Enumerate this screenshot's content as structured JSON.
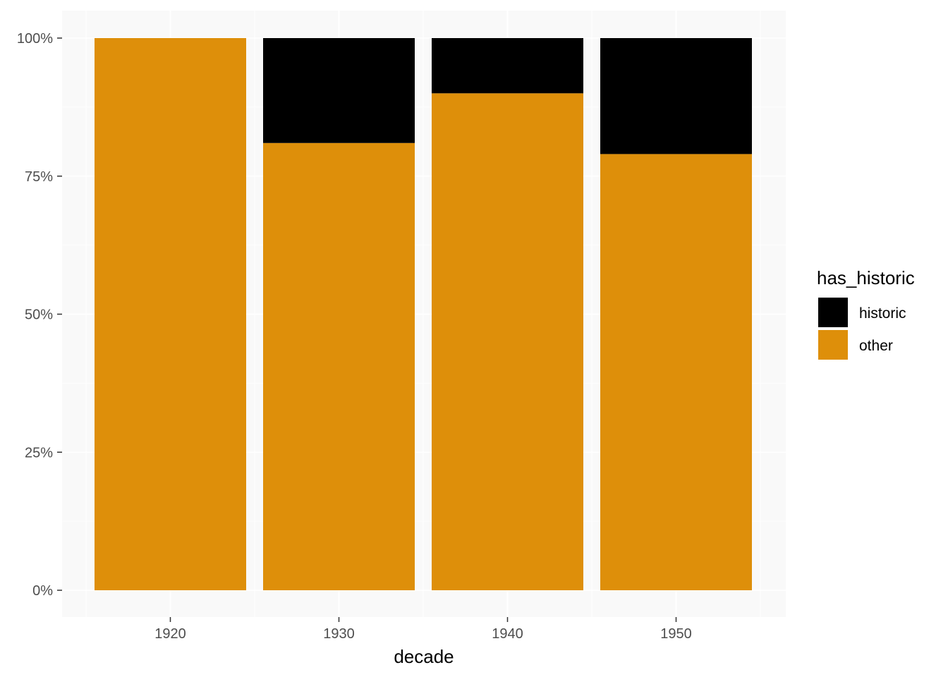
{
  "chart_data": {
    "type": "bar",
    "stacked": true,
    "position": "fill",
    "categories": [
      "1920",
      "1930",
      "1940",
      "1950"
    ],
    "series": [
      {
        "name": "other",
        "values": [
          1.0,
          0.81,
          0.9,
          0.79
        ]
      },
      {
        "name": "historic",
        "values": [
          0.0,
          0.19,
          0.1,
          0.21
        ]
      }
    ],
    "xlabel": "decade",
    "ylabel": "",
    "ylim": [
      0,
      1
    ],
    "y_ticks": [
      0,
      0.25,
      0.5,
      0.75,
      1.0
    ],
    "y_tick_labels": [
      "0%",
      "25%",
      "50%",
      "75%",
      "100%"
    ],
    "grid": true,
    "legend": {
      "title": "has_historic",
      "placement": "right",
      "entries": [
        "historic",
        "other"
      ]
    },
    "colors": {
      "historic": "#000000",
      "other": "#DE8F0A",
      "panel": "#F9F9F9",
      "grid": "#FFFFFF"
    }
  }
}
